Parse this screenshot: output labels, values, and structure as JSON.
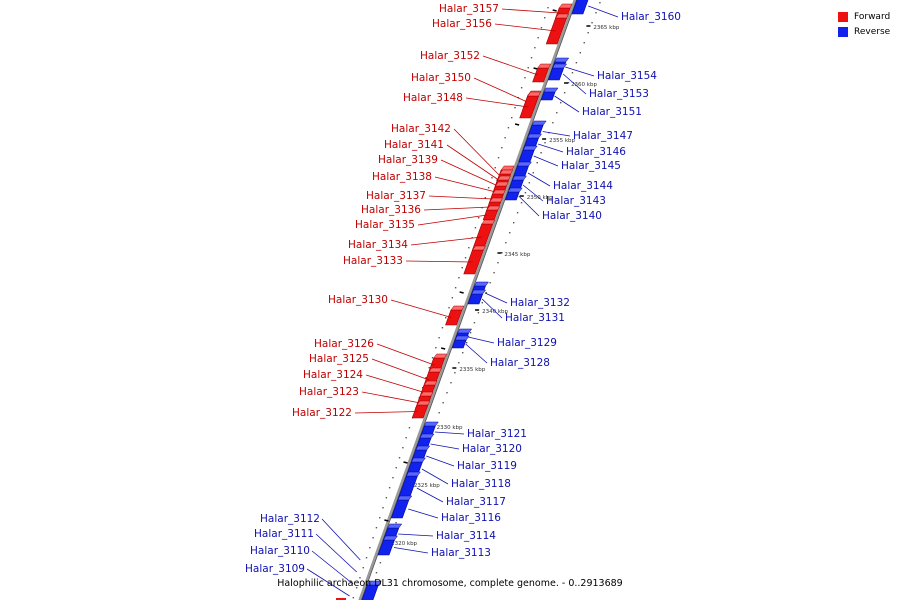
{
  "caption": "Halophilic archaeon DL31 chromosome, complete genome. - 0..2913689",
  "legend": [
    {
      "label": "Forward",
      "color": "#ee1111"
    },
    {
      "label": "Reverse",
      "color": "#1122ee"
    }
  ],
  "colors": {
    "forward": "#ee1111",
    "forward_dark": "#a00000",
    "reverse": "#1122ee",
    "reverse_dark": "#000a90",
    "forward_label": "#c00000",
    "reverse_label": "#1010b0",
    "backbone": "#888888",
    "tick": "#000000"
  },
  "scale_labels": [
    "2365 kbp",
    "2360 kbp",
    "2355 kbp",
    "2350 kbp",
    "2345 kbp",
    "2340 kbp",
    "2335 kbp",
    "2330 kbp",
    "2325 kbp",
    "2320 kbp"
  ],
  "forward_genes": [
    "Halar_3157",
    "Halar_3156",
    "Halar_3152",
    "Halar_3150",
    "Halar_3148",
    "Halar_3142",
    "Halar_3141",
    "Halar_3139",
    "Halar_3138",
    "Halar_3137",
    "Halar_3136",
    "Halar_3135",
    "Halar_3134",
    "Halar_3133",
    "Halar_3130",
    "Halar_3126",
    "Halar_3125",
    "Halar_3124",
    "Halar_3123",
    "Halar_3122"
  ],
  "reverse_genes": [
    "Halar_3160",
    "Halar_3154",
    "Halar_3153",
    "Halar_3151",
    "Halar_3147",
    "Halar_3146",
    "Halar_3145",
    "Halar_3144",
    "Halar_3143",
    "Halar_3140",
    "Halar_3132",
    "Halar_3131",
    "Halar_3129",
    "Halar_3128",
    "Halar_3121",
    "Halar_3120",
    "Halar_3119",
    "Halar_3118",
    "Halar_3117",
    "Halar_3116",
    "Halar_3114",
    "Halar_3113"
  ],
  "lower_labels": [
    "Halar_3112",
    "Halar_3111",
    "Halar_3110",
    "Halar_3109"
  ]
}
